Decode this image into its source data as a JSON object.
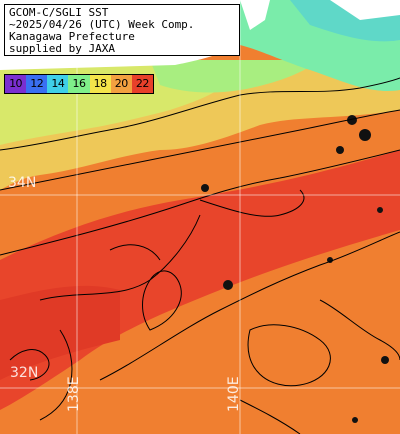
{
  "title": {
    "line1": "GCOM-C/SGLI SST",
    "line2": "~2025/04/26 (UTC) Week Comp.",
    "line3": "Kanagawa Prefecture",
    "line4": "supplied by JAXA"
  },
  "legend": {
    "items": [
      {
        "label": "10",
        "color": "#7a2fd0"
      },
      {
        "label": "12",
        "color": "#3a6ff2"
      },
      {
        "label": "14",
        "color": "#3fd0e8"
      },
      {
        "label": "16",
        "color": "#7ff08a"
      },
      {
        "label": "18",
        "color": "#f4e44a"
      },
      {
        "label": "20",
        "color": "#f3a040"
      },
      {
        "label": "22",
        "color": "#e8402a"
      }
    ]
  },
  "grid_labels": {
    "lat_34": "34N",
    "lat_32": "32N",
    "lon_138": "138E",
    "lon_140": "140E"
  },
  "colors": {
    "land": "#ffffff",
    "sst_cold": "#6fe8b0",
    "sst_mid": "#e8e46a",
    "sst_warm": "#f39a3c",
    "sst_hot": "#e8402a",
    "contour": "#000000"
  }
}
